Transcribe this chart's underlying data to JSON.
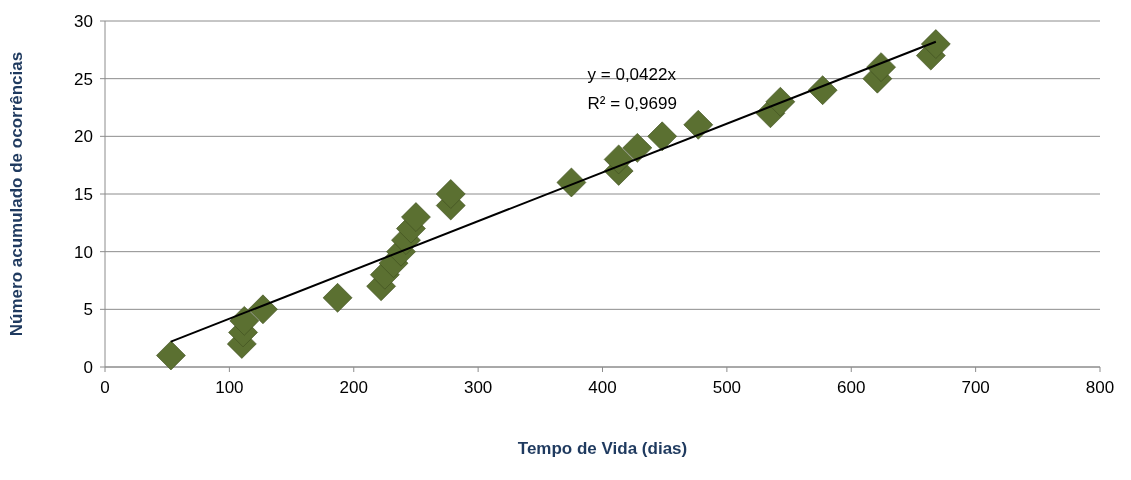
{
  "chart_data": {
    "type": "scatter",
    "xlabel": "Tempo de Vida (dias)",
    "ylabel": "Número acumulado de ocorrências",
    "xlim": [
      0,
      800
    ],
    "xticks": [
      0,
      100,
      200,
      300,
      400,
      500,
      600,
      700,
      800
    ],
    "ylim": [
      0,
      30
    ],
    "yticks": [
      0,
      5,
      10,
      15,
      20,
      25,
      30
    ],
    "grid": "y",
    "marker": "diamond",
    "annotations": [
      "y = 0,0422x",
      "R² = 0,9699"
    ],
    "series": [
      {
        "color": "#5b7031",
        "x": [
          53,
          110,
          111,
          112,
          127,
          187,
          222,
          225,
          232,
          238,
          242,
          246,
          250,
          278,
          278,
          375,
          413,
          413,
          428,
          448,
          477,
          535,
          543,
          577,
          621,
          624,
          664,
          668
        ],
        "values": [
          1,
          2,
          3,
          4,
          5,
          6,
          7,
          8,
          9,
          10,
          11,
          12,
          13,
          14,
          15,
          16,
          17,
          18,
          19,
          20,
          21,
          22,
          23,
          24,
          25,
          26,
          27,
          28
        ]
      },
      {
        "type": "line",
        "marker": "none",
        "color": "#000000",
        "x": [
          53,
          668
        ],
        "values": [
          2.2,
          28.2
        ]
      }
    ]
  }
}
